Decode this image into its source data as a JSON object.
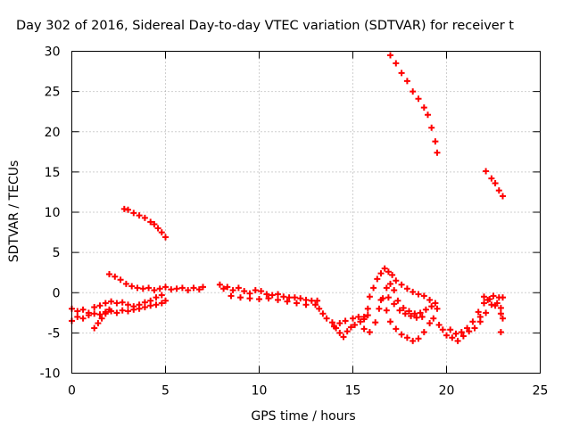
{
  "chart_data": {
    "type": "scatter",
    "title": "Day 302 of 2016, Sidereal Day-to-day VTEC variation (SDTVAR) for receiver t",
    "xlabel": "GPS time / hours",
    "ylabel": "SDTVAR / TECUs",
    "xlim": [
      0,
      25
    ],
    "ylim": [
      -10,
      30
    ],
    "xticks": [
      "0",
      "5",
      "10",
      "15",
      "20",
      "25"
    ],
    "yticks": [
      "-10",
      "-5",
      "0",
      "5",
      "10",
      "15",
      "20",
      "25",
      "30"
    ],
    "grid": true,
    "marker": "plus",
    "color": "#ff0000",
    "series": [
      {
        "values": [
          [
            0.0,
            -2.0
          ],
          [
            0.3,
            -2.3
          ],
          [
            0.6,
            -2.1
          ],
          [
            0.9,
            -2.5
          ],
          [
            1.2,
            -1.8
          ],
          [
            1.5,
            -1.6
          ],
          [
            1.8,
            -1.3
          ],
          [
            2.1,
            -1.1
          ],
          [
            2.4,
            -1.3
          ],
          [
            2.7,
            -1.2
          ],
          [
            3.0,
            -1.5
          ],
          [
            3.3,
            -1.7
          ],
          [
            3.6,
            -1.5
          ],
          [
            3.9,
            -1.2
          ],
          [
            4.2,
            -1.0
          ],
          [
            4.5,
            -0.6
          ],
          [
            4.8,
            -0.3
          ],
          [
            0.0,
            -3.5
          ],
          [
            0.3,
            -3.0
          ],
          [
            0.6,
            -3.2
          ],
          [
            0.9,
            -2.8
          ],
          [
            1.2,
            -2.6
          ],
          [
            1.5,
            -2.7
          ],
          [
            1.8,
            -2.4
          ],
          [
            2.1,
            -2.3
          ],
          [
            2.4,
            -2.5
          ],
          [
            2.7,
            -2.2
          ],
          [
            3.0,
            -2.3
          ],
          [
            3.3,
            -2.1
          ],
          [
            3.6,
            -2.0
          ],
          [
            3.9,
            -1.8
          ],
          [
            4.2,
            -1.6
          ],
          [
            4.5,
            -1.5
          ],
          [
            4.8,
            -1.3
          ],
          [
            5.0,
            -1.0
          ],
          [
            1.2,
            -4.4
          ],
          [
            1.4,
            -3.8
          ],
          [
            1.6,
            -3.2
          ],
          [
            1.8,
            -2.6
          ],
          [
            2.0,
            -2.1
          ],
          [
            2.0,
            2.3
          ],
          [
            2.3,
            2.0
          ],
          [
            2.6,
            1.6
          ],
          [
            2.9,
            1.1
          ],
          [
            3.2,
            0.8
          ],
          [
            3.5,
            0.6
          ],
          [
            3.8,
            0.5
          ],
          [
            4.1,
            0.6
          ],
          [
            4.4,
            0.3
          ],
          [
            4.7,
            0.5
          ],
          [
            5.0,
            0.7
          ],
          [
            5.3,
            0.4
          ],
          [
            5.6,
            0.5
          ],
          [
            5.9,
            0.6
          ],
          [
            6.2,
            0.3
          ],
          [
            6.5,
            0.6
          ],
          [
            6.8,
            0.4
          ],
          [
            7.0,
            0.7
          ],
          [
            7.9,
            1.0
          ],
          [
            8.1,
            0.5
          ],
          [
            8.3,
            0.7
          ],
          [
            8.6,
            0.3
          ],
          [
            8.9,
            0.6
          ],
          [
            9.2,
            0.2
          ],
          [
            9.5,
            -0.1
          ],
          [
            9.8,
            0.3
          ],
          [
            10.1,
            0.2
          ],
          [
            10.4,
            -0.2
          ],
          [
            10.7,
            -0.3
          ],
          [
            11.0,
            -0.2
          ],
          [
            11.3,
            -0.5
          ],
          [
            11.6,
            -0.6
          ],
          [
            11.9,
            -0.6
          ],
          [
            12.2,
            -0.7
          ],
          [
            12.5,
            -0.9
          ],
          [
            12.8,
            -1.0
          ],
          [
            13.1,
            -1.0
          ],
          [
            8.5,
            -0.4
          ],
          [
            9.0,
            -0.6
          ],
          [
            9.5,
            -0.7
          ],
          [
            10.0,
            -0.8
          ],
          [
            10.5,
            -0.7
          ],
          [
            11.0,
            -0.9
          ],
          [
            11.5,
            -1.1
          ],
          [
            12.0,
            -1.3
          ],
          [
            12.5,
            -1.5
          ],
          [
            13.0,
            -1.5
          ],
          [
            13.2,
            -2.0
          ],
          [
            13.4,
            -2.6
          ],
          [
            13.6,
            -3.2
          ],
          [
            13.9,
            -3.7
          ],
          [
            14.1,
            -4.4
          ],
          [
            14.3,
            -5.0
          ],
          [
            14.5,
            -5.5
          ],
          [
            14.7,
            -4.8
          ],
          [
            14.9,
            -4.3
          ],
          [
            15.1,
            -4.0
          ],
          [
            15.4,
            -3.6
          ],
          [
            15.6,
            -3.0
          ],
          [
            15.8,
            -2.8
          ],
          [
            14.0,
            -4.2
          ],
          [
            14.3,
            -3.8
          ],
          [
            14.6,
            -3.5
          ],
          [
            15.0,
            -3.2
          ],
          [
            15.3,
            -3.0
          ],
          [
            15.6,
            -3.3
          ],
          [
            15.8,
            -2.0
          ],
          [
            15.9,
            -0.5
          ],
          [
            16.1,
            0.6
          ],
          [
            16.3,
            1.7
          ],
          [
            16.5,
            2.4
          ],
          [
            16.7,
            3.0
          ],
          [
            16.9,
            2.6
          ],
          [
            17.1,
            2.2
          ],
          [
            17.3,
            1.5
          ],
          [
            17.6,
            1.0
          ],
          [
            17.9,
            0.5
          ],
          [
            18.2,
            0.1
          ],
          [
            18.5,
            -0.2
          ],
          [
            18.8,
            -0.4
          ],
          [
            19.1,
            -0.9
          ],
          [
            19.4,
            -1.3
          ],
          [
            15.6,
            -4.5
          ],
          [
            15.9,
            -4.9
          ],
          [
            16.2,
            -3.7
          ],
          [
            16.4,
            -2.0
          ],
          [
            16.6,
            -0.7
          ],
          [
            16.8,
            0.6
          ],
          [
            17.0,
            1.1
          ],
          [
            17.2,
            0.3
          ],
          [
            17.4,
            -1.0
          ],
          [
            17.7,
            -1.9
          ],
          [
            18.0,
            -2.3
          ],
          [
            18.3,
            -2.6
          ],
          [
            18.6,
            -2.5
          ],
          [
            18.9,
            -2.1
          ],
          [
            19.2,
            -1.7
          ],
          [
            19.5,
            -2.0
          ],
          [
            16.5,
            -0.9
          ],
          [
            16.8,
            -2.2
          ],
          [
            17.0,
            -3.6
          ],
          [
            17.3,
            -4.5
          ],
          [
            17.6,
            -5.2
          ],
          [
            17.9,
            -5.6
          ],
          [
            18.2,
            -6.0
          ],
          [
            18.5,
            -5.7
          ],
          [
            18.8,
            -4.9
          ],
          [
            19.1,
            -3.8
          ],
          [
            19.3,
            -3.2
          ],
          [
            16.9,
            -0.6
          ],
          [
            17.2,
            -1.4
          ],
          [
            17.5,
            -2.2
          ],
          [
            17.8,
            -2.6
          ],
          [
            18.1,
            -2.9
          ],
          [
            18.4,
            -3.1
          ],
          [
            18.7,
            -3.0
          ],
          [
            19.6,
            -4.0
          ],
          [
            19.8,
            -4.6
          ],
          [
            20.0,
            -5.3
          ],
          [
            20.3,
            -5.6
          ],
          [
            20.6,
            -6.0
          ],
          [
            20.9,
            -5.4
          ],
          [
            21.2,
            -4.8
          ],
          [
            21.5,
            -4.4
          ],
          [
            21.8,
            -3.6
          ],
          [
            22.1,
            -2.5
          ],
          [
            22.4,
            -1.5
          ],
          [
            22.7,
            -1.3
          ],
          [
            22.9,
            -2.6
          ],
          [
            23.0,
            -3.2
          ],
          [
            20.2,
            -4.6
          ],
          [
            20.5,
            -5.1
          ],
          [
            20.8,
            -4.9
          ],
          [
            21.1,
            -4.4
          ],
          [
            21.4,
            -3.6
          ],
          [
            21.7,
            -2.4
          ],
          [
            22.0,
            -1.3
          ],
          [
            22.3,
            -0.8
          ],
          [
            22.6,
            -1.6
          ],
          [
            22.9,
            -1.9
          ],
          [
            21.8,
            -3.0
          ],
          [
            22.0,
            -0.5
          ],
          [
            22.2,
            -0.9
          ],
          [
            22.5,
            -0.4
          ],
          [
            22.8,
            -0.6
          ],
          [
            23.0,
            -0.6
          ],
          [
            22.9,
            -4.9
          ],
          [
            2.8,
            10.4
          ],
          [
            3.0,
            10.3
          ],
          [
            3.3,
            9.9
          ],
          [
            3.6,
            9.6
          ],
          [
            3.9,
            9.3
          ],
          [
            4.2,
            8.8
          ],
          [
            4.4,
            8.5
          ],
          [
            4.6,
            8.0
          ],
          [
            4.8,
            7.5
          ],
          [
            5.0,
            6.9
          ],
          [
            17.0,
            29.5
          ],
          [
            17.3,
            28.5
          ],
          [
            17.6,
            27.3
          ],
          [
            17.9,
            26.3
          ],
          [
            18.2,
            25.0
          ],
          [
            18.5,
            24.1
          ],
          [
            18.8,
            23.0
          ],
          [
            19.0,
            22.1
          ],
          [
            19.2,
            20.5
          ],
          [
            19.4,
            18.8
          ],
          [
            19.5,
            17.4
          ],
          [
            22.1,
            15.1
          ],
          [
            22.4,
            14.2
          ],
          [
            22.6,
            13.6
          ],
          [
            22.8,
            12.7
          ],
          [
            23.0,
            12.0
          ]
        ]
      }
    ]
  }
}
